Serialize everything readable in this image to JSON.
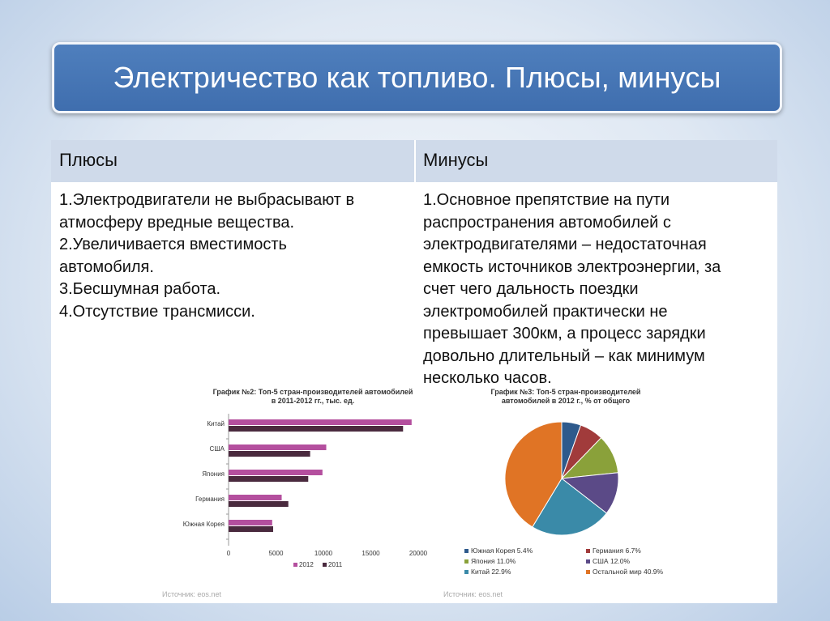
{
  "slide": {
    "title": "Электричество как топливо. Плюсы, минусы"
  },
  "table": {
    "pros_header": "Плюсы",
    "cons_header": "Минусы",
    "pros": [
      "1.Электродвигатели не выбрасывают в",
      "атмосферу вредные вещества.",
      "2.Увеличивается вместимость",
      "автомобиля.",
      "3.Бесшумная работа.",
      "4.Отсутствие трансмисси."
    ],
    "cons": [
      "1.Основное препятствие на пути",
      "распространения автомобилей с",
      "электродвигателями – недостаточная",
      "емкость источников электроэнергии, за",
      "счет чего дальность поездки",
      "электромобилей практически не",
      "превышает 300км, а процесс зарядки",
      "довольно длительный – как минимум",
      "несколько часов."
    ]
  },
  "charts": {
    "bar_title_line1": "График №2: Топ-5 стран-производителей автомобилей",
    "bar_title_line2": "в 2011-2012 гг., тыс. ед.",
    "bar_source": "Источник: eos.net",
    "pie_title_line1": "График №3: Топ-5 стран-производителей",
    "pie_title_line2": "автомобилей в 2012 г., % от общего",
    "pie_source": "Источник: eos.net"
  },
  "chart_data": [
    {
      "type": "bar",
      "orientation": "horizontal",
      "title": "График №2: Топ-5 стран-производителей автомобилей в 2011-2012 гг., тыс. ед.",
      "categories": [
        "Китай",
        "США",
        "Япония",
        "Германия",
        "Южная Корея"
      ],
      "series": [
        {
          "name": "2012",
          "color": "#b44f9e",
          "values": [
            19300,
            10300,
            9900,
            5600,
            4600
          ]
        },
        {
          "name": "2011",
          "color": "#4a2a3e",
          "values": [
            18400,
            8600,
            8400,
            6300,
            4700
          ]
        }
      ],
      "xlim": [
        0,
        20000
      ],
      "xticks": [
        "0",
        "5000",
        "10000",
        "15000",
        "20000"
      ],
      "legend_labels": [
        "2012",
        "2011"
      ],
      "legend_position": "bottom"
    },
    {
      "type": "pie",
      "title": "График №3: Топ-5 стран-производителей автомобилей в 2012 г., % от общего",
      "slices": [
        {
          "label": "Южная Корея 5.4%",
          "value": 5.4,
          "color": "#2e5a8c"
        },
        {
          "label": "Германия 6.7%",
          "value": 6.7,
          "color": "#a13b3b"
        },
        {
          "label": "Япония 11.0%",
          "value": 11.0,
          "color": "#8aa13a"
        },
        {
          "label": "США 12.0%",
          "value": 12.0,
          "color": "#5b4a87"
        },
        {
          "label": "Китай 22.9%",
          "value": 22.9,
          "color": "#3a8aa8"
        },
        {
          "label": "Остальной мир 40.9%",
          "value": 40.9,
          "color": "#e07425"
        }
      ],
      "legend_position": "bottom"
    }
  ]
}
